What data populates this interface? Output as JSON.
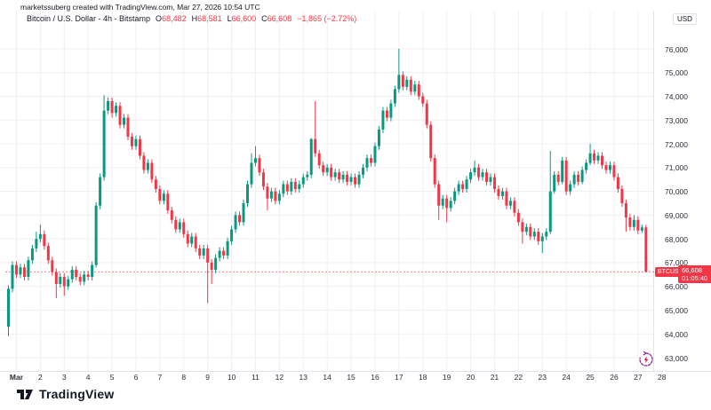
{
  "attribution": "marketssuberg created with TradingView.com, Mar 27, 2026 10:54 UTC",
  "legend": {
    "title": "Bitcoin / U.S. Dollar - 4h - Bitstamp",
    "o_label": "O",
    "o_value": "68,482",
    "h_label": "H",
    "h_value": "68,581",
    "l_label": "L",
    "l_value": "66,600",
    "c_label": "C",
    "c_value": "66,608",
    "change": "−1,865 (−2.72%)"
  },
  "price_axis": {
    "currency": "USD",
    "labels": [
      "76,000",
      "75,000",
      "74,000",
      "73,000",
      "72,000",
      "71,000",
      "70,000",
      "69,000",
      "68,000",
      "67,000",
      "66,000",
      "65,000",
      "64,000",
      "63,000"
    ],
    "last_price_label": {
      "symbol": "BTCUSD",
      "price": "66,608",
      "countdown": "01:05:40"
    }
  },
  "time_axis": {
    "labels": [
      "Mar",
      "2",
      "3",
      "4",
      "5",
      "6",
      "7",
      "8",
      "9",
      "10",
      "11",
      "12",
      "13",
      "14",
      "15",
      "16",
      "17",
      "18",
      "19",
      "20",
      "21",
      "22",
      "23",
      "24",
      "25",
      "26",
      "27",
      "28"
    ]
  },
  "logo": {
    "text": "TradingView"
  },
  "colors": {
    "up": "#089981",
    "down": "#f23645",
    "grid": "#f1eef2",
    "axis_border": "#e0e3eb",
    "last_line": "#f23645",
    "label_bg": "#f23645"
  },
  "chart_data": {
    "type": "candlestick",
    "symbol": "BTCUSD",
    "exchange": "Bitstamp",
    "interval": "4h",
    "title": "Bitcoin / U.S. Dollar",
    "ylim": [
      63000,
      76000
    ],
    "grid": true,
    "last": {
      "open": 68482,
      "high": 68581,
      "low": 66600,
      "close": 66608,
      "change": -1865,
      "change_pct": -2.72
    },
    "candles": [
      [
        64300,
        66050,
        63900,
        65900
      ],
      [
        65900,
        67050,
        65750,
        66900
      ],
      [
        66900,
        67050,
        66350,
        66500
      ],
      [
        66500,
        66950,
        66350,
        66800
      ],
      [
        66800,
        66950,
        66250,
        66400
      ],
      [
        66400,
        67250,
        66250,
        67100
      ],
      [
        67100,
        67750,
        66950,
        67600
      ],
      [
        67600,
        68300,
        67450,
        68000
      ],
      [
        68000,
        68600,
        67850,
        68200
      ],
      [
        68200,
        68350,
        67550,
        67700
      ],
      [
        67700,
        67850,
        66950,
        67100
      ],
      [
        67100,
        67250,
        66450,
        66600
      ],
      [
        66600,
        66750,
        65500,
        66100
      ],
      [
        66100,
        66550,
        65950,
        66400
      ],
      [
        66400,
        66550,
        65600,
        66000
      ],
      [
        66000,
        66450,
        65850,
        66300
      ],
      [
        66300,
        66850,
        66150,
        66700
      ],
      [
        66700,
        66850,
        66250,
        66400
      ],
      [
        66400,
        66550,
        66050,
        66200
      ],
      [
        66200,
        66650,
        66050,
        66500
      ],
      [
        66500,
        66650,
        66250,
        66400
      ],
      [
        66400,
        67050,
        66250,
        66900
      ],
      [
        66900,
        69550,
        66800,
        69400
      ],
      [
        69400,
        70750,
        69250,
        70600
      ],
      [
        70600,
        74050,
        70450,
        73400
      ],
      [
        73400,
        73950,
        73250,
        73800
      ],
      [
        73800,
        73950,
        73100,
        73300
      ],
      [
        73300,
        73750,
        73150,
        73600
      ],
      [
        73600,
        73750,
        72650,
        72800
      ],
      [
        72800,
        73250,
        72650,
        73100
      ],
      [
        73100,
        73250,
        72150,
        72300
      ],
      [
        72300,
        72450,
        71750,
        71900
      ],
      [
        71900,
        72350,
        71750,
        72200
      ],
      [
        72200,
        72350,
        71350,
        71500
      ],
      [
        71500,
        71650,
        70750,
        70900
      ],
      [
        70900,
        71350,
        70750,
        71200
      ],
      [
        71200,
        71350,
        70350,
        70500
      ],
      [
        70500,
        70650,
        69950,
        70100
      ],
      [
        70100,
        70250,
        69450,
        69600
      ],
      [
        69600,
        70050,
        69450,
        69900
      ],
      [
        69900,
        70050,
        69050,
        69200
      ],
      [
        69200,
        69350,
        68650,
        68800
      ],
      [
        68800,
        68950,
        68250,
        68400
      ],
      [
        68400,
        68850,
        68250,
        68700
      ],
      [
        68700,
        68850,
        68050,
        68200
      ],
      [
        68200,
        68350,
        67650,
        67800
      ],
      [
        67800,
        68250,
        67650,
        68100
      ],
      [
        68100,
        68250,
        67450,
        67600
      ],
      [
        67600,
        67750,
        67150,
        67300
      ],
      [
        67300,
        67750,
        67150,
        67600
      ],
      [
        67600,
        67750,
        65300,
        67000
      ],
      [
        67000,
        67150,
        66100,
        66700
      ],
      [
        66700,
        67350,
        66550,
        67200
      ],
      [
        67200,
        67650,
        67050,
        67500
      ],
      [
        67500,
        67650,
        67150,
        67300
      ],
      [
        67300,
        68050,
        67150,
        67900
      ],
      [
        67900,
        68550,
        67750,
        68400
      ],
      [
        68400,
        69150,
        68250,
        69000
      ],
      [
        69000,
        69150,
        68550,
        68700
      ],
      [
        68700,
        69650,
        68550,
        69500
      ],
      [
        69500,
        70450,
        69350,
        70300
      ],
      [
        70300,
        71600,
        70150,
        71200
      ],
      [
        71200,
        71900,
        71050,
        71400
      ],
      [
        71400,
        71550,
        70650,
        70800
      ],
      [
        70800,
        70950,
        70050,
        70200
      ],
      [
        70200,
        70350,
        69200,
        69700
      ],
      [
        69700,
        70150,
        69550,
        70000
      ],
      [
        70000,
        70150,
        69450,
        69600
      ],
      [
        69600,
        70050,
        69450,
        69900
      ],
      [
        69900,
        70450,
        69750,
        70300
      ],
      [
        70300,
        70450,
        69850,
        70000
      ],
      [
        70000,
        70550,
        69850,
        70400
      ],
      [
        70400,
        70550,
        69950,
        70100
      ],
      [
        70100,
        70450,
        69950,
        70300
      ],
      [
        70300,
        70750,
        70150,
        70600
      ],
      [
        70600,
        70850,
        70450,
        70700
      ],
      [
        70700,
        72250,
        70550,
        72200
      ],
      [
        72200,
        73800,
        71450,
        71600
      ],
      [
        71600,
        71750,
        70950,
        71100
      ],
      [
        71100,
        71250,
        70650,
        70800
      ],
      [
        70800,
        71150,
        70650,
        71000
      ],
      [
        71000,
        71150,
        70450,
        70600
      ],
      [
        70600,
        70950,
        70450,
        70800
      ],
      [
        70800,
        70950,
        70350,
        70500
      ],
      [
        70500,
        70850,
        70350,
        70700
      ],
      [
        70700,
        70850,
        70250,
        70400
      ],
      [
        70400,
        70750,
        70250,
        70600
      ],
      [
        70600,
        70750,
        70150,
        70300
      ],
      [
        70300,
        70850,
        70150,
        70700
      ],
      [
        70700,
        71150,
        70550,
        71000
      ],
      [
        71000,
        71550,
        70850,
        71400
      ],
      [
        71400,
        71550,
        71050,
        71200
      ],
      [
        71200,
        72050,
        71050,
        71900
      ],
      [
        71900,
        72750,
        71750,
        72600
      ],
      [
        72600,
        73550,
        72450,
        73400
      ],
      [
        73400,
        73550,
        72950,
        73100
      ],
      [
        73100,
        73850,
        72950,
        73700
      ],
      [
        73700,
        74450,
        73550,
        74300
      ],
      [
        74300,
        76000,
        74150,
        74900
      ],
      [
        74900,
        75050,
        74250,
        74400
      ],
      [
        74400,
        74850,
        74250,
        74700
      ],
      [
        74700,
        74850,
        74050,
        74200
      ],
      [
        74200,
        74650,
        74050,
        74500
      ],
      [
        74500,
        74650,
        73850,
        74000
      ],
      [
        74000,
        74150,
        73550,
        73700
      ],
      [
        73700,
        73850,
        72650,
        72800
      ],
      [
        72800,
        72950,
        71250,
        71400
      ],
      [
        71400,
        71550,
        70150,
        70300
      ],
      [
        70300,
        70450,
        68800,
        69400
      ],
      [
        69400,
        69850,
        69250,
        69700
      ],
      [
        69700,
        69850,
        68700,
        69300
      ],
      [
        69300,
        69750,
        69150,
        69600
      ],
      [
        69600,
        70150,
        69450,
        70000
      ],
      [
        70000,
        70450,
        69850,
        70300
      ],
      [
        70300,
        70450,
        69950,
        70100
      ],
      [
        70100,
        70650,
        69950,
        70500
      ],
      [
        70500,
        70950,
        70350,
        70800
      ],
      [
        70800,
        71300,
        70650,
        71000
      ],
      [
        71000,
        71150,
        70450,
        70600
      ],
      [
        70600,
        70950,
        70450,
        70800
      ],
      [
        70800,
        70950,
        70250,
        70400
      ],
      [
        70400,
        70750,
        70250,
        70600
      ],
      [
        70600,
        70750,
        69950,
        70100
      ],
      [
        70100,
        70250,
        69650,
        69800
      ],
      [
        69800,
        70150,
        69650,
        70000
      ],
      [
        70000,
        70150,
        69250,
        69400
      ],
      [
        69400,
        69750,
        69250,
        69600
      ],
      [
        69600,
        69750,
        68950,
        69100
      ],
      [
        69100,
        69250,
        68550,
        68700
      ],
      [
        68700,
        68850,
        67800,
        68300
      ],
      [
        68300,
        68650,
        68150,
        68500
      ],
      [
        68500,
        68650,
        67950,
        68100
      ],
      [
        68100,
        68450,
        67950,
        68300
      ],
      [
        68300,
        68450,
        67750,
        67900
      ],
      [
        67900,
        68250,
        67400,
        68100
      ],
      [
        68100,
        68450,
        67950,
        68300
      ],
      [
        68300,
        71700,
        68200,
        70000
      ],
      [
        70000,
        70850,
        69900,
        70700
      ],
      [
        70700,
        70850,
        70250,
        70400
      ],
      [
        70400,
        71450,
        70300,
        71300
      ],
      [
        71300,
        71450,
        69850,
        70000
      ],
      [
        70000,
        70450,
        69850,
        70300
      ],
      [
        70300,
        70850,
        70150,
        70700
      ],
      [
        70700,
        70850,
        70250,
        70400
      ],
      [
        70400,
        71050,
        70300,
        70900
      ],
      [
        70900,
        71350,
        70750,
        71200
      ],
      [
        71200,
        72000,
        71100,
        71600
      ],
      [
        71600,
        71750,
        71150,
        71300
      ],
      [
        71300,
        71650,
        71150,
        71500
      ],
      [
        71500,
        71650,
        70950,
        71100
      ],
      [
        71100,
        71250,
        70750,
        70900
      ],
      [
        70900,
        71250,
        70750,
        71100
      ],
      [
        71100,
        71250,
        70450,
        70600
      ],
      [
        70600,
        70750,
        69950,
        70100
      ],
      [
        70100,
        70250,
        69350,
        69500
      ],
      [
        69500,
        69650,
        68300,
        68900
      ],
      [
        68900,
        69050,
        68350,
        68500
      ],
      [
        68500,
        69000,
        68350,
        68800
      ],
      [
        68800,
        68950,
        68200,
        68350
      ],
      [
        68350,
        68600,
        68250,
        68482
      ],
      [
        68482,
        68581,
        66600,
        66608
      ]
    ]
  }
}
